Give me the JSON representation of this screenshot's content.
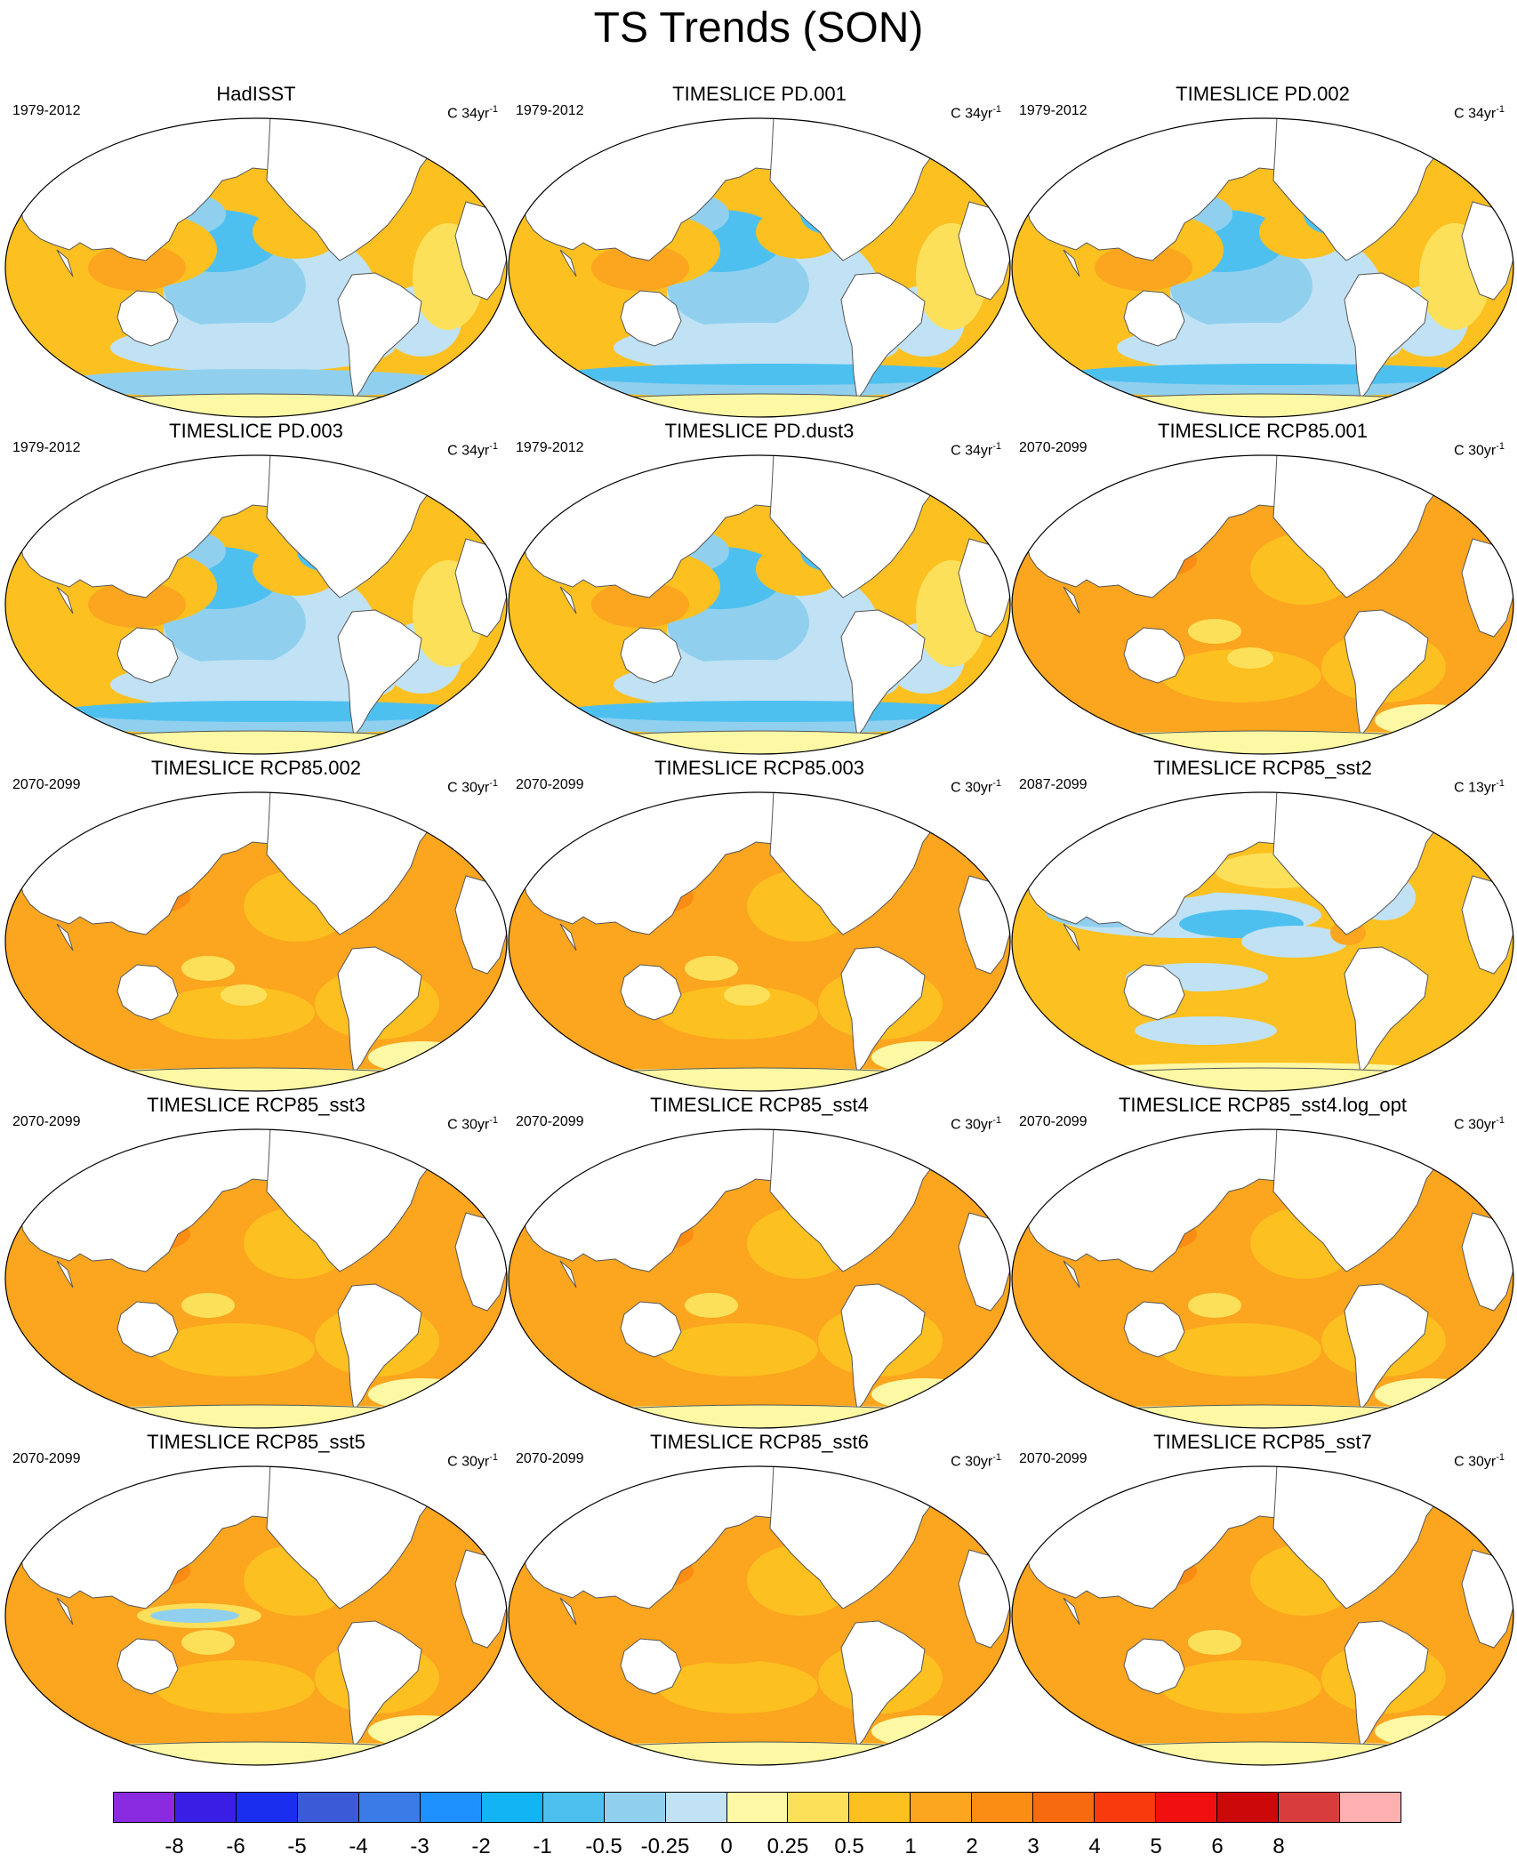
{
  "title": "TS Trends (SON)",
  "panels": [
    {
      "title": "HadISST",
      "period": "1979-2012",
      "units": "C 34yr",
      "sup": "-1",
      "pattern": "obs"
    },
    {
      "title": "TIMESLICE PD.001",
      "period": "1979-2012",
      "units": "C 34yr",
      "sup": "-1",
      "pattern": "pd"
    },
    {
      "title": "TIMESLICE PD.002",
      "period": "1979-2012",
      "units": "C 34yr",
      "sup": "-1",
      "pattern": "pd"
    },
    {
      "title": "TIMESLICE PD.003",
      "period": "1979-2012",
      "units": "C 34yr",
      "sup": "-1",
      "pattern": "pd"
    },
    {
      "title": "TIMESLICE PD.dust3",
      "period": "1979-2012",
      "units": "C 34yr",
      "sup": "-1",
      "pattern": "pd"
    },
    {
      "title": "TIMESLICE RCP85.001",
      "period": "2070-2099",
      "units": "C 30yr",
      "sup": "-1",
      "pattern": "rcp_natl"
    },
    {
      "title": "TIMESLICE RCP85.002",
      "period": "2070-2099",
      "units": "C 30yr",
      "sup": "-1",
      "pattern": "rcp_natl"
    },
    {
      "title": "TIMESLICE RCP85.003",
      "period": "2070-2099",
      "units": "C 30yr",
      "sup": "-1",
      "pattern": "rcp_natl"
    },
    {
      "title": "TIMESLICE RCP85_sst2",
      "period": "2087-2099",
      "units": "C 13yr",
      "sup": "-1",
      "pattern": "sst2"
    },
    {
      "title": "TIMESLICE RCP85_sst3",
      "period": "2070-2099",
      "units": "C 30yr",
      "sup": "-1",
      "pattern": "rcp"
    },
    {
      "title": "TIMESLICE RCP85_sst4",
      "period": "2070-2099",
      "units": "C 30yr",
      "sup": "-1",
      "pattern": "rcp_arctic"
    },
    {
      "title": "TIMESLICE RCP85_sst4.log_opt",
      "period": "2070-2099",
      "units": "C 30yr",
      "sup": "-1",
      "pattern": "rcp_arctic"
    },
    {
      "title": "TIMESLICE RCP85_sst5",
      "period": "2070-2099",
      "units": "C 30yr",
      "sup": "-1",
      "pattern": "sst5"
    },
    {
      "title": "TIMESLICE RCP85_sst6",
      "period": "2070-2099",
      "units": "C 30yr",
      "sup": "-1",
      "pattern": "sst6"
    },
    {
      "title": "TIMESLICE RCP85_sst7",
      "period": "2070-2099",
      "units": "C 30yr",
      "sup": "-1",
      "pattern": "rcp"
    }
  ],
  "colorbar": {
    "colors": [
      "#8a2be2",
      "#3a1ee6",
      "#1a2ef0",
      "#3a5ad8",
      "#3a7be8",
      "#1e90ff",
      "#12b4f4",
      "#4ec0f0",
      "#90d0ee",
      "#c0e2f4",
      "#fcf8a4",
      "#fde05a",
      "#fcc020",
      "#fca51e",
      "#fb8c14",
      "#f86a10",
      "#f83a0c",
      "#f01010",
      "#cc0808",
      "#d83c3c",
      "#ffb0b0"
    ],
    "labels": [
      "-8",
      "-6",
      "-5",
      "-4",
      "-3",
      "-2",
      "-1",
      "-0.5",
      "-0.25",
      "0",
      "0.25",
      "0.5",
      "1",
      "2",
      "3",
      "4",
      "5",
      "6",
      "8"
    ]
  }
}
